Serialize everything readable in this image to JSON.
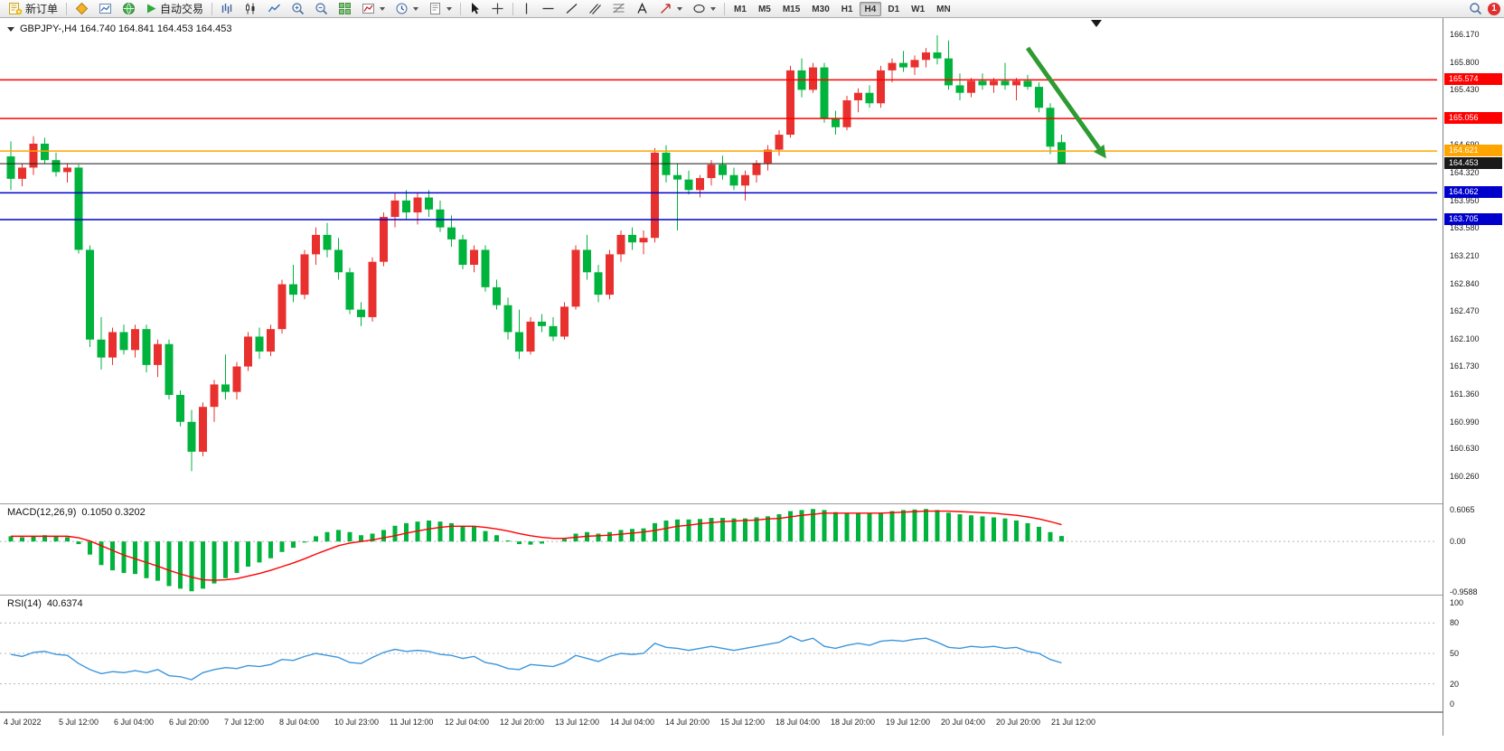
{
  "toolbar": {
    "new_order_label": "新订单",
    "auto_trading_label": "自动交易",
    "timeframes": [
      "M1",
      "M5",
      "M15",
      "M30",
      "H1",
      "H4",
      "D1",
      "W1",
      "MN"
    ],
    "active_timeframe": "H4",
    "notification_badge": "1"
  },
  "chart": {
    "header": "GBPJPY-,H4 164.740 164.841 164.453 164.453"
  },
  "chart_data": {
    "type": "candlestick",
    "symbol": "GBPJPY-",
    "timeframe": "H4",
    "current_bar": {
      "open": 164.74,
      "high": 164.841,
      "low": 164.453,
      "close": 164.453
    },
    "up_color": "#E8312E",
    "down_color": "#00B33C",
    "price_axis_ticks": [
      "166.170",
      "165.800",
      "165.430",
      "165.060",
      "164.690",
      "164.320",
      "163.950",
      "163.580",
      "163.210",
      "162.840",
      "162.470",
      "162.100",
      "161.730",
      "161.360",
      "160.990",
      "160.630",
      "160.260"
    ],
    "hlines": [
      {
        "price": 165.574,
        "color": "#FF0000",
        "label": "165.574"
      },
      {
        "price": 165.056,
        "color": "#FF0000",
        "label": "165.056"
      },
      {
        "price": 164.621,
        "color": "#FFA500",
        "label": "164.621"
      },
      {
        "price": 164.453,
        "color": "#1A1A1A",
        "label": "164.453"
      },
      {
        "price": 164.062,
        "color": "#0000CC",
        "label": "164.062"
      },
      {
        "price": 163.705,
        "color": "#0000CC",
        "label": "163.705"
      }
    ],
    "x_labels": [
      "4 Jul 2022",
      "5 Jul 12:00",
      "6 Jul 04:00",
      "6 Jul 20:00",
      "7 Jul 12:00",
      "8 Jul 04:00",
      "10 Jul 23:00",
      "11 Jul 12:00",
      "12 Jul 04:00",
      "12 Jul 20:00",
      "13 Jul 12:00",
      "14 Jul 04:00",
      "14 Jul 20:00",
      "15 Jul 12:00",
      "18 Jul 04:00",
      "18 Jul 20:00",
      "19 Jul 12:00",
      "20 Jul 04:00",
      "20 Jul 20:00",
      "21 Jul 12:00"
    ],
    "candles": [
      [
        164.55,
        164.75,
        164.1,
        164.25
      ],
      [
        164.25,
        164.45,
        164.15,
        164.4
      ],
      [
        164.4,
        164.82,
        164.3,
        164.72
      ],
      [
        164.72,
        164.8,
        164.45,
        164.5
      ],
      [
        164.5,
        164.6,
        164.28,
        164.34
      ],
      [
        164.34,
        164.46,
        164.2,
        164.4
      ],
      [
        164.4,
        164.44,
        163.25,
        163.3
      ],
      [
        163.3,
        163.36,
        162.0,
        162.1
      ],
      [
        162.1,
        162.4,
        161.7,
        161.86
      ],
      [
        161.86,
        162.26,
        161.76,
        162.2
      ],
      [
        162.2,
        162.3,
        161.9,
        161.96
      ],
      [
        161.96,
        162.3,
        161.86,
        162.24
      ],
      [
        162.24,
        162.3,
        161.66,
        161.76
      ],
      [
        161.76,
        162.1,
        161.6,
        162.04
      ],
      [
        162.04,
        162.1,
        161.3,
        161.36
      ],
      [
        161.36,
        161.42,
        160.94,
        161.0
      ],
      [
        161.0,
        161.16,
        160.34,
        160.6
      ],
      [
        160.6,
        161.26,
        160.54,
        161.2
      ],
      [
        161.2,
        161.56,
        161.0,
        161.5
      ],
      [
        161.5,
        161.9,
        161.3,
        161.4
      ],
      [
        161.4,
        161.8,
        161.3,
        161.74
      ],
      [
        161.74,
        162.2,
        161.68,
        162.14
      ],
      [
        162.14,
        162.26,
        161.84,
        161.94
      ],
      [
        161.94,
        162.3,
        161.88,
        162.24
      ],
      [
        162.24,
        162.9,
        162.18,
        162.84
      ],
      [
        162.84,
        163.1,
        162.6,
        162.7
      ],
      [
        162.7,
        163.3,
        162.64,
        163.24
      ],
      [
        163.24,
        163.6,
        163.1,
        163.5
      ],
      [
        163.5,
        163.66,
        163.2,
        163.3
      ],
      [
        163.3,
        163.46,
        162.9,
        163.0
      ],
      [
        163.0,
        163.06,
        162.44,
        162.5
      ],
      [
        162.5,
        162.6,
        162.28,
        162.4
      ],
      [
        162.4,
        163.2,
        162.34,
        163.14
      ],
      [
        163.14,
        163.8,
        163.08,
        163.74
      ],
      [
        163.74,
        164.06,
        163.6,
        163.96
      ],
      [
        163.96,
        164.1,
        163.7,
        163.8
      ],
      [
        163.8,
        164.06,
        163.64,
        164.0
      ],
      [
        164.0,
        164.1,
        163.74,
        163.84
      ],
      [
        163.84,
        163.96,
        163.54,
        163.6
      ],
      [
        163.6,
        163.76,
        163.34,
        163.44
      ],
      [
        163.44,
        163.5,
        163.04,
        163.1
      ],
      [
        163.1,
        163.36,
        163.0,
        163.3
      ],
      [
        163.3,
        163.36,
        162.74,
        162.8
      ],
      [
        162.8,
        162.9,
        162.5,
        162.56
      ],
      [
        162.56,
        162.66,
        162.1,
        162.2
      ],
      [
        162.2,
        162.5,
        161.84,
        161.94
      ],
      [
        161.94,
        162.4,
        161.9,
        162.34
      ],
      [
        162.34,
        162.44,
        162.2,
        162.28
      ],
      [
        162.28,
        162.4,
        162.08,
        162.14
      ],
      [
        162.14,
        162.6,
        162.1,
        162.54
      ],
      [
        162.54,
        163.36,
        162.5,
        163.3
      ],
      [
        163.3,
        163.5,
        162.9,
        163.0
      ],
      [
        163.0,
        163.1,
        162.6,
        162.7
      ],
      [
        162.7,
        163.3,
        162.64,
        163.24
      ],
      [
        163.24,
        163.56,
        163.14,
        163.5
      ],
      [
        163.5,
        163.6,
        163.3,
        163.4
      ],
      [
        163.4,
        163.56,
        163.24,
        163.46
      ],
      [
        163.46,
        164.66,
        163.4,
        164.6
      ],
      [
        164.6,
        164.7,
        164.2,
        164.3
      ],
      [
        164.3,
        164.46,
        163.56,
        164.24
      ],
      [
        164.24,
        164.36,
        164.04,
        164.1
      ],
      [
        164.1,
        164.3,
        164.0,
        164.26
      ],
      [
        164.26,
        164.5,
        164.16,
        164.44
      ],
      [
        164.44,
        164.56,
        164.24,
        164.3
      ],
      [
        164.3,
        164.4,
        164.1,
        164.16
      ],
      [
        164.16,
        164.36,
        163.96,
        164.3
      ],
      [
        164.3,
        164.5,
        164.2,
        164.46
      ],
      [
        164.46,
        164.7,
        164.36,
        164.64
      ],
      [
        164.64,
        164.9,
        164.56,
        164.84
      ],
      [
        164.84,
        165.76,
        164.8,
        165.7
      ],
      [
        165.7,
        165.86,
        165.34,
        165.44
      ],
      [
        165.44,
        165.8,
        165.4,
        165.74
      ],
      [
        165.74,
        165.8,
        165.0,
        165.06
      ],
      [
        165.06,
        165.16,
        164.84,
        164.94
      ],
      [
        164.94,
        165.36,
        164.9,
        165.3
      ],
      [
        165.3,
        165.46,
        165.14,
        165.4
      ],
      [
        165.4,
        165.5,
        165.2,
        165.26
      ],
      [
        165.26,
        165.76,
        165.2,
        165.7
      ],
      [
        165.7,
        165.86,
        165.54,
        165.8
      ],
      [
        165.8,
        165.96,
        165.68,
        165.74
      ],
      [
        165.74,
        165.9,
        165.64,
        165.84
      ],
      [
        165.84,
        166.0,
        165.74,
        165.94
      ],
      [
        165.94,
        166.17,
        165.78,
        165.86
      ],
      [
        165.86,
        166.1,
        165.44,
        165.5
      ],
      [
        165.5,
        165.66,
        165.3,
        165.4
      ],
      [
        165.4,
        165.6,
        165.34,
        165.56
      ],
      [
        165.56,
        165.66,
        165.44,
        165.5
      ],
      [
        165.5,
        165.6,
        165.4,
        165.56
      ],
      [
        165.56,
        165.8,
        165.44,
        165.5
      ],
      [
        165.5,
        165.6,
        165.3,
        165.56
      ],
      [
        165.56,
        165.64,
        165.44,
        165.48
      ],
      [
        165.48,
        165.54,
        165.14,
        165.2
      ],
      [
        165.2,
        165.26,
        164.58,
        164.68
      ],
      [
        164.74,
        164.841,
        164.453,
        164.453
      ]
    ],
    "indicators": {
      "macd": {
        "title": "MACD(12,26,9)",
        "values": "0.1050 0.3202",
        "axis_labels": [
          "0.6065",
          "0.00",
          "-0.9588"
        ],
        "range": [
          -0.9588,
          0.6065
        ],
        "histogram_color": "#00B33C",
        "signal_color": "#FF0000",
        "histogram": [
          0.1,
          0.08,
          0.1,
          0.12,
          0.1,
          0.08,
          -0.05,
          -0.25,
          -0.45,
          -0.55,
          -0.6,
          -0.62,
          -0.7,
          -0.75,
          -0.85,
          -0.9,
          -0.95,
          -0.9,
          -0.8,
          -0.7,
          -0.6,
          -0.48,
          -0.4,
          -0.32,
          -0.2,
          -0.12,
          -0.02,
          0.1,
          0.18,
          0.22,
          0.18,
          0.12,
          0.15,
          0.22,
          0.3,
          0.35,
          0.38,
          0.4,
          0.38,
          0.35,
          0.3,
          0.28,
          0.2,
          0.12,
          0.02,
          -0.05,
          -0.06,
          -0.04,
          0.0,
          0.05,
          0.15,
          0.18,
          0.15,
          0.18,
          0.22,
          0.24,
          0.25,
          0.35,
          0.4,
          0.42,
          0.42,
          0.43,
          0.45,
          0.45,
          0.44,
          0.44,
          0.46,
          0.48,
          0.52,
          0.58,
          0.6,
          0.62,
          0.6,
          0.56,
          0.54,
          0.54,
          0.53,
          0.55,
          0.58,
          0.6,
          0.61,
          0.62,
          0.6,
          0.55,
          0.52,
          0.5,
          0.48,
          0.46,
          0.44,
          0.4,
          0.35,
          0.28,
          0.18,
          0.105
        ],
        "signal": [
          0.1,
          0.1,
          0.1,
          0.1,
          0.1,
          0.1,
          0.07,
          0.01,
          -0.08,
          -0.17,
          -0.26,
          -0.33,
          -0.4,
          -0.47,
          -0.55,
          -0.62,
          -0.68,
          -0.73,
          -0.74,
          -0.73,
          -0.71,
          -0.66,
          -0.61,
          -0.55,
          -0.48,
          -0.41,
          -0.33,
          -0.24,
          -0.16,
          -0.08,
          -0.03,
          0.0,
          0.03,
          0.07,
          0.11,
          0.16,
          0.2,
          0.24,
          0.27,
          0.29,
          0.29,
          0.29,
          0.27,
          0.24,
          0.2,
          0.15,
          0.11,
          0.08,
          0.06,
          0.06,
          0.08,
          0.1,
          0.11,
          0.12,
          0.14,
          0.16,
          0.18,
          0.21,
          0.25,
          0.29,
          0.31,
          0.34,
          0.36,
          0.38,
          0.39,
          0.4,
          0.41,
          0.43,
          0.44,
          0.47,
          0.5,
          0.52,
          0.54,
          0.54,
          0.54,
          0.54,
          0.54,
          0.54,
          0.55,
          0.56,
          0.57,
          0.58,
          0.58,
          0.58,
          0.57,
          0.56,
          0.55,
          0.54,
          0.52,
          0.5,
          0.47,
          0.43,
          0.38,
          0.3202
        ]
      },
      "rsi": {
        "title": "RSI(14)",
        "value": "40.6374",
        "axis_labels": [
          "100",
          "80",
          "50",
          "20",
          "0"
        ],
        "levels": [
          80,
          50,
          20
        ],
        "line_color": "#3C96DC",
        "values": [
          49,
          47,
          51,
          52,
          49,
          48,
          40,
          34,
          30,
          32,
          31,
          33,
          31,
          34,
          28,
          27,
          24,
          31,
          34,
          36,
          35,
          38,
          37,
          39,
          44,
          43,
          47,
          50,
          48,
          46,
          41,
          40,
          46,
          51,
          54,
          52,
          53,
          52,
          49,
          48,
          45,
          47,
          41,
          39,
          35,
          34,
          39,
          38,
          37,
          41,
          48,
          45,
          42,
          47,
          50,
          49,
          50,
          60,
          56,
          55,
          53,
          55,
          57,
          55,
          53,
          55,
          57,
          59,
          61,
          67,
          62,
          65,
          57,
          55,
          58,
          60,
          58,
          62,
          63,
          62,
          64,
          65,
          61,
          56,
          55,
          57,
          56,
          57,
          55,
          56,
          52,
          50,
          44,
          40.64
        ]
      }
    },
    "annotations": {
      "arrow": {
        "color": "#2E9B32",
        "from": {
          "candle": 90,
          "price": 166.0
        },
        "to": {
          "candle": 96.3,
          "price": 164.66
        }
      }
    }
  }
}
